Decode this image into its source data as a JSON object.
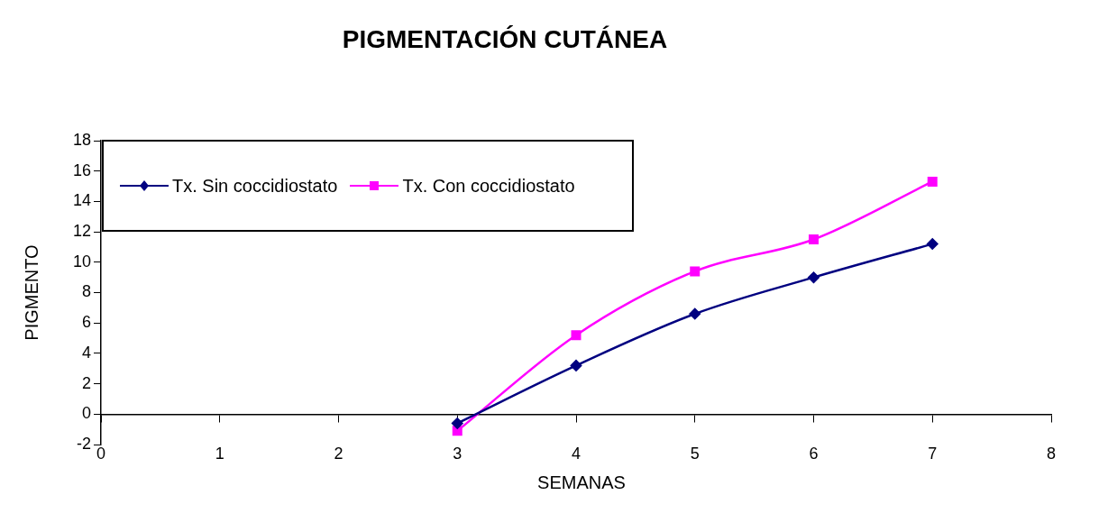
{
  "chart_data": {
    "type": "line",
    "title": "PIGMENTACIÓN CUTÁNEA",
    "xlabel": "SEMANAS",
    "ylabel": "PIGMENTO",
    "x": [
      3,
      4,
      5,
      6,
      7
    ],
    "series": [
      {
        "name": "Tx. Sin coccidiostato",
        "color": "#000080",
        "marker": "diamond",
        "values": [
          -0.6,
          3.2,
          6.6,
          9.0,
          11.2
        ]
      },
      {
        "name": "Tx. Con coccidiostato",
        "color": "#ff00ff",
        "marker": "square",
        "values": [
          -1.1,
          5.2,
          9.4,
          11.5,
          15.3
        ]
      }
    ],
    "xlim": [
      0,
      8
    ],
    "xticks": [
      0,
      1,
      2,
      3,
      4,
      5,
      6,
      7,
      8
    ],
    "ylim": [
      -2,
      18
    ],
    "yticks": [
      -2,
      0,
      2,
      4,
      6,
      8,
      10,
      12,
      14,
      16,
      18
    ],
    "grid": false,
    "legend": "top left"
  }
}
